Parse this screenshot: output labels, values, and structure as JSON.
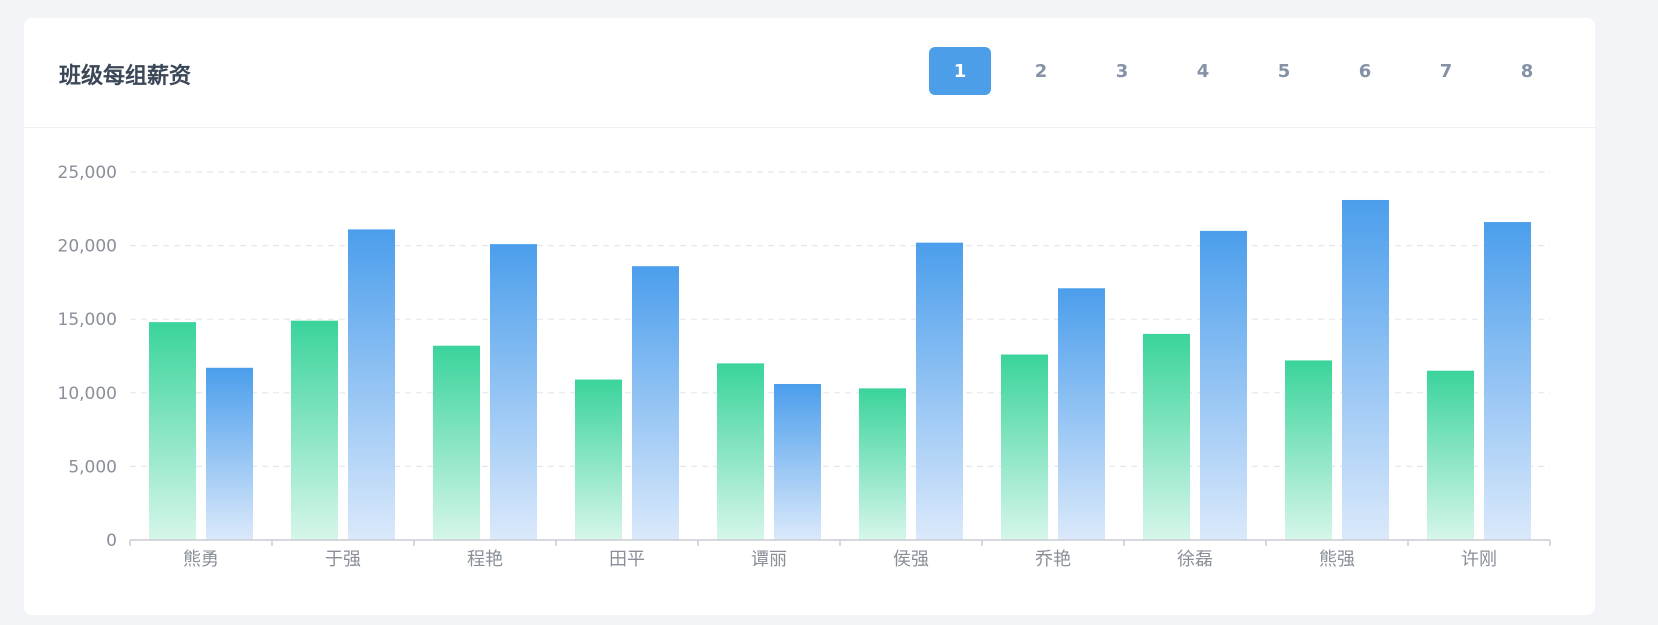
{
  "card": {
    "title": "班级每组薪资"
  },
  "pager": {
    "pages": [
      "1",
      "2",
      "3",
      "4",
      "5",
      "6",
      "7",
      "8"
    ],
    "active_index": 0
  },
  "colors": {
    "accent": "#4d9ee9",
    "series_green": "#3ad49b",
    "series_blue": "#4b9eec"
  },
  "chart_data": {
    "type": "bar",
    "categories": [
      "熊勇",
      "于强",
      "程艳",
      "田平",
      "谭丽",
      "侯强",
      "乔艳",
      "徐磊",
      "熊强",
      "许刚"
    ],
    "series": [
      {
        "values": [
          14800,
          14900,
          13200,
          10900,
          12000,
          10300,
          12600,
          14000,
          12200,
          11500
        ]
      },
      {
        "values": [
          11700,
          21100,
          20100,
          18600,
          10600,
          20200,
          17100,
          21000,
          23100,
          21600
        ]
      }
    ],
    "ylim": [
      0,
      25000
    ],
    "yticks": [
      0,
      5000,
      10000,
      15000,
      20000,
      25000
    ],
    "ytick_labels": [
      "0",
      "5,000",
      "10,000",
      "15,000",
      "20,000",
      "25,000"
    ],
    "grid": true,
    "legend": "none"
  }
}
